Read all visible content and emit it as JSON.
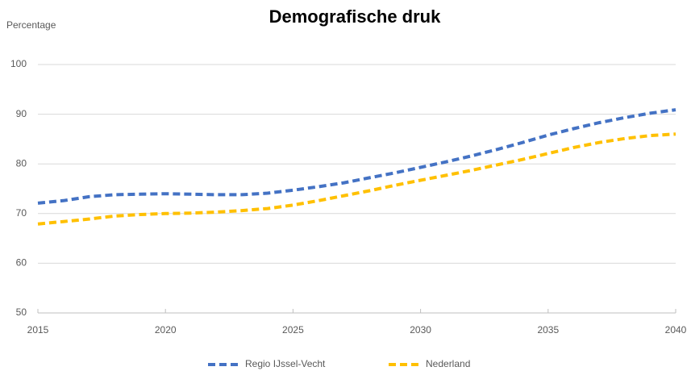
{
  "chart_data": {
    "type": "line",
    "title": "Demografische druk",
    "y_label": "Percentage",
    "x": [
      2015,
      2016,
      2017,
      2018,
      2019,
      2020,
      2021,
      2022,
      2023,
      2024,
      2025,
      2026,
      2027,
      2028,
      2029,
      2030,
      2031,
      2032,
      2033,
      2034,
      2035,
      2036,
      2037,
      2038,
      2039,
      2040
    ],
    "series": [
      {
        "name": "Regio IJssel-Vecht",
        "color": "#4472c4",
        "values": [
          72.1,
          72.6,
          73.4,
          73.8,
          73.9,
          74.0,
          73.9,
          73.8,
          73.8,
          74.1,
          74.7,
          75.4,
          76.2,
          77.2,
          78.2,
          79.3,
          80.4,
          81.6,
          82.9,
          84.3,
          85.8,
          87.1,
          88.3,
          89.3,
          90.2,
          90.9
        ]
      },
      {
        "name": "Nederland",
        "color": "#ffc000",
        "values": [
          67.9,
          68.4,
          68.9,
          69.5,
          69.8,
          70.0,
          70.1,
          70.3,
          70.6,
          71.0,
          71.7,
          72.6,
          73.6,
          74.6,
          75.7,
          76.7,
          77.7,
          78.7,
          79.8,
          80.9,
          82.1,
          83.3,
          84.3,
          85.1,
          85.7,
          86.0
        ]
      }
    ],
    "xlim": [
      2015,
      2040
    ],
    "xticks": [
      2015,
      2020,
      2025,
      2030,
      2035,
      2040
    ],
    "ylim": [
      50,
      100
    ],
    "yticks": [
      50,
      60,
      70,
      80,
      90,
      100
    ],
    "grid": true,
    "line_style": "dashed",
    "legend": "bottom"
  }
}
